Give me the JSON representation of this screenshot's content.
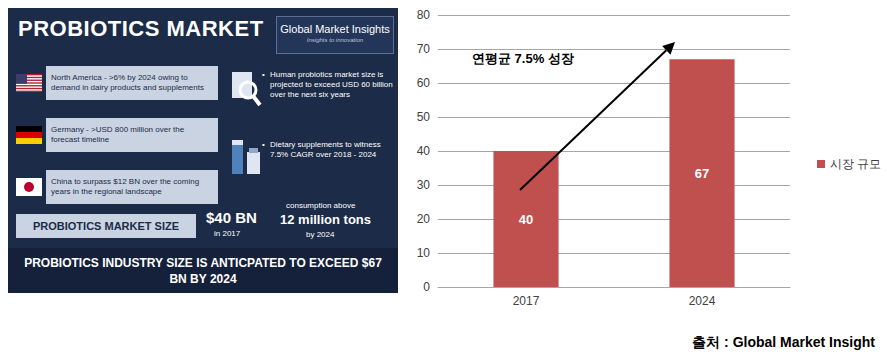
{
  "infographic": {
    "title": "PROBIOTICS MARKET",
    "logo": {
      "name": "Global Market Insights",
      "tagline": "Insights to innovation"
    },
    "regions": [
      "North America - >6% by 2024 owing to demand in dairy products and supplements",
      "Germany - >USD 800 million over the forecast timeline",
      "China to surpass $12 BN over the coming years in the regional landscape"
    ],
    "bullets": [
      "Human probiotics market size is projected to exceed USD 60 billion over the next six years",
      "Dietary supplements to witness 7.5% CAGR over 2018 - 2024"
    ],
    "market_size": {
      "label": "PROBIOTICS MARKET SIZE",
      "value": "$40 BN",
      "year": "in 2017"
    },
    "consumption": {
      "label": "consumption above",
      "value": "12 million tons",
      "year": "by 2024"
    },
    "footer": "PROBIOTICS INDUSTRY SIZE IS ANTICPATED TO EXCEED $67 BN BY 2024"
  },
  "chart_data": {
    "type": "bar",
    "categories": [
      "2017",
      "2024"
    ],
    "series": [
      {
        "name": "시장 규모",
        "color": "#c0504d",
        "values": [
          40,
          67
        ]
      }
    ],
    "ylim": [
      0,
      80
    ],
    "yticks": [
      0,
      10,
      20,
      30,
      40,
      50,
      60,
      70,
      80
    ],
    "grid": true,
    "legend": "right",
    "data_labels": true,
    "annotations": [
      "연평균 7.5% 성장"
    ],
    "source": "출처 : Global Market Insight"
  }
}
